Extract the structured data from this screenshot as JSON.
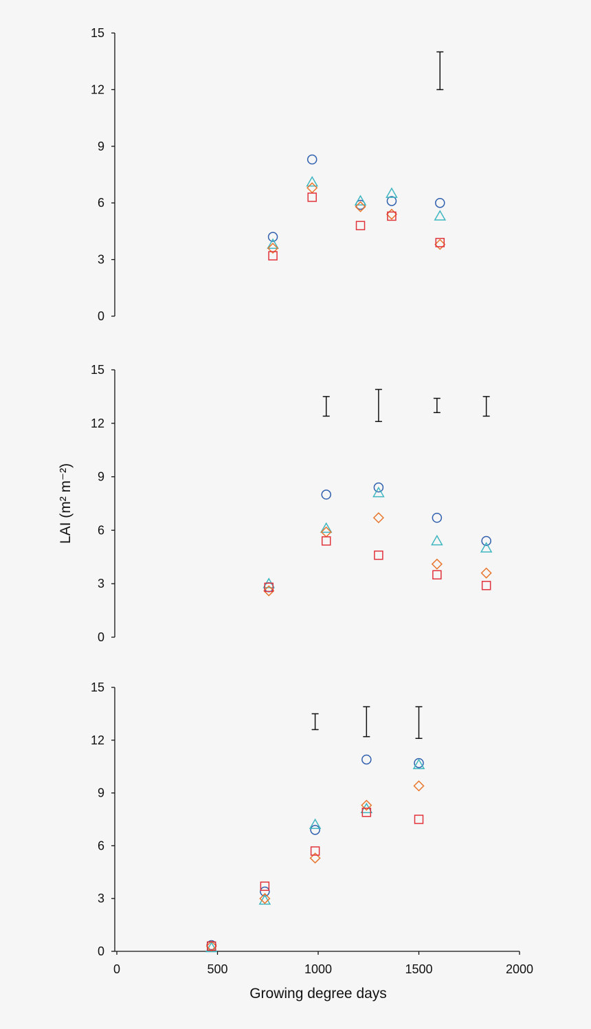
{
  "colors": {
    "background": "#f6f6f6",
    "axis": "#111111",
    "circle": "#2f5fae",
    "triangle": "#3fb6c0",
    "diamond": "#e8762d",
    "square": "#e0323a",
    "errorbar": "#111111"
  },
  "chart_data": [
    {
      "type": "scatter",
      "ylabel": "",
      "xlabel": "",
      "xlim": [
        0,
        2000
      ],
      "ylim": [
        0,
        15
      ],
      "yticks": [
        "0",
        "3",
        "6",
        "9",
        "12",
        "15"
      ],
      "xticks": [],
      "series": [
        {
          "marker": "circle",
          "x": [
            775,
            970,
            1210,
            1365,
            1605
          ],
          "y": [
            4.2,
            8.3,
            5.9,
            6.1,
            6.0
          ]
        },
        {
          "marker": "triangle",
          "x": [
            775,
            970,
            1210,
            1365,
            1605
          ],
          "y": [
            3.8,
            7.1,
            6.1,
            6.5,
            5.3
          ]
        },
        {
          "marker": "diamond",
          "x": [
            775,
            970,
            1210,
            1365,
            1605
          ],
          "y": [
            3.6,
            6.8,
            5.8,
            5.4,
            3.8
          ]
        },
        {
          "marker": "square",
          "x": [
            775,
            970,
            1210,
            1365,
            1605
          ],
          "y": [
            3.2,
            6.3,
            4.8,
            5.3,
            3.9
          ]
        }
      ],
      "error_bars": [
        {
          "x": 1605,
          "low": 12.0,
          "high": 14.0
        }
      ]
    },
    {
      "type": "scatter",
      "ylabel": "LAI (m² m⁻²)",
      "xlabel": "",
      "xlim": [
        0,
        2000
      ],
      "ylim": [
        0,
        15
      ],
      "yticks": [
        "0",
        "3",
        "6",
        "9",
        "12",
        "15"
      ],
      "xticks": [],
      "series": [
        {
          "marker": "circle",
          "x": [
            755,
            1040,
            1300,
            1590,
            1835
          ],
          "y": [
            2.8,
            8.0,
            8.4,
            6.7,
            5.4
          ]
        },
        {
          "marker": "triangle",
          "x": [
            755,
            1040,
            1300,
            1590,
            1835
          ],
          "y": [
            3.0,
            6.1,
            8.1,
            5.4,
            5.0
          ]
        },
        {
          "marker": "diamond",
          "x": [
            755,
            1040,
            1300,
            1590,
            1835
          ],
          "y": [
            2.6,
            5.9,
            6.7,
            4.1,
            3.6
          ]
        },
        {
          "marker": "square",
          "x": [
            755,
            1040,
            1300,
            1590,
            1835
          ],
          "y": [
            2.8,
            5.4,
            4.6,
            3.5,
            2.9
          ]
        }
      ],
      "error_bars": [
        {
          "x": 1040,
          "low": 12.4,
          "high": 13.5
        },
        {
          "x": 1300,
          "low": 12.1,
          "high": 13.9
        },
        {
          "x": 1590,
          "low": 12.6,
          "high": 13.4
        },
        {
          "x": 1835,
          "low": 12.4,
          "high": 13.5
        }
      ]
    },
    {
      "type": "scatter",
      "ylabel": "",
      "xlabel": "Growing degree days",
      "xlim": [
        0,
        2000
      ],
      "ylim": [
        0,
        15
      ],
      "yticks": [
        "0",
        "3",
        "6",
        "9",
        "12",
        "15"
      ],
      "xticks": [
        "0",
        "500",
        "1000",
        "1500",
        "2000"
      ],
      "series": [
        {
          "marker": "circle",
          "x": [
            470,
            735,
            985,
            1240,
            1500
          ],
          "y": [
            0.35,
            3.4,
            6.9,
            10.9,
            10.7
          ]
        },
        {
          "marker": "triangle",
          "x": [
            470,
            735,
            985,
            1240,
            1500
          ],
          "y": [
            0.2,
            2.9,
            7.2,
            8.1,
            10.6
          ]
        },
        {
          "marker": "diamond",
          "x": [
            470,
            735,
            985,
            1240,
            1500
          ],
          "y": [
            0.3,
            3.0,
            5.3,
            8.3,
            9.4
          ]
        },
        {
          "marker": "square",
          "x": [
            470,
            735,
            985,
            1240,
            1500
          ],
          "y": [
            0.3,
            3.7,
            5.7,
            7.9,
            7.5
          ]
        }
      ],
      "error_bars": [
        {
          "x": 985,
          "low": 12.6,
          "high": 13.5
        },
        {
          "x": 1240,
          "low": 12.2,
          "high": 13.9
        },
        {
          "x": 1500,
          "low": 12.1,
          "high": 13.9
        }
      ]
    }
  ]
}
